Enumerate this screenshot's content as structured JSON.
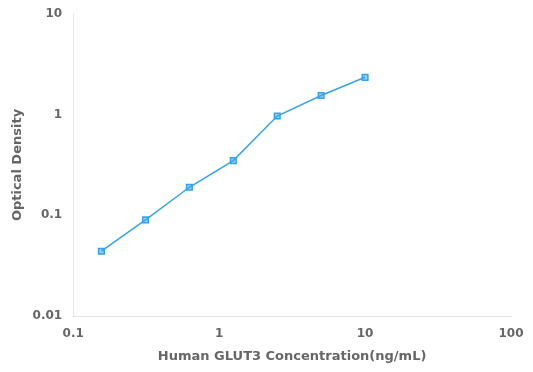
{
  "chart_data": {
    "type": "line",
    "x": [
      0.156,
      0.313,
      0.625,
      1.25,
      2.5,
      5.0,
      10.0
    ],
    "values": [
      0.044,
      0.09,
      0.19,
      0.35,
      0.97,
      1.55,
      2.35
    ],
    "xlabel": "Human GLUT3 Concentration(ng/mL)",
    "ylabel": "Optical Density",
    "xlim": [
      0.1,
      100
    ],
    "ylim": [
      0.01,
      10
    ],
    "xticks": [
      0.1,
      1,
      10,
      100
    ],
    "yticks": [
      0.01,
      0.1,
      1,
      10
    ],
    "log": true,
    "marker": "square",
    "grid": false
  }
}
